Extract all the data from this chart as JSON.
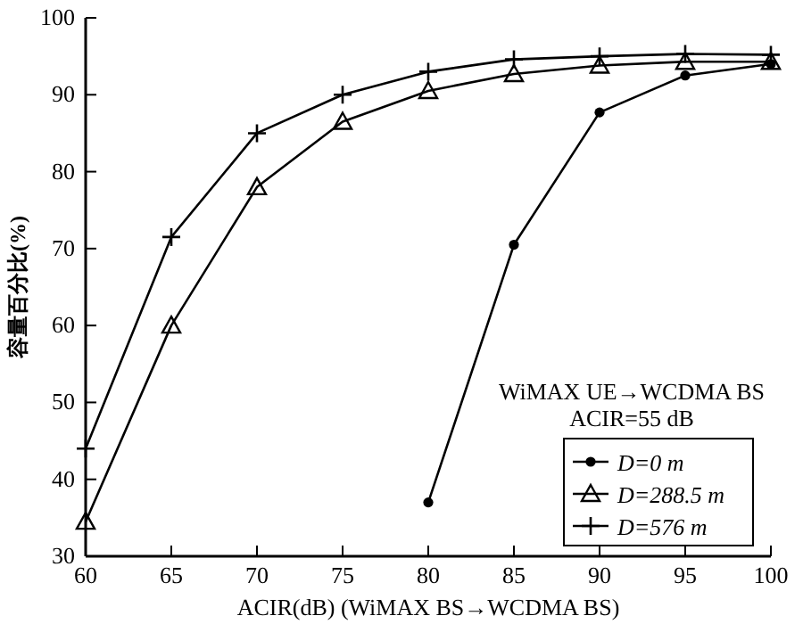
{
  "chart_data": {
    "type": "line",
    "ylabel": "容量百分比(%)",
    "xlabel": "ACIR(dB) (WiMAX BS→WCDMA BS)",
    "x": [
      60,
      65,
      70,
      75,
      80,
      85,
      90,
      95,
      100
    ],
    "xlim": [
      60,
      100
    ],
    "xticks": [
      60,
      65,
      70,
      75,
      80,
      85,
      90,
      95,
      100
    ],
    "ylim": [
      30,
      100
    ],
    "yticks": [
      30,
      40,
      50,
      60,
      70,
      80,
      90,
      100
    ],
    "grid": false,
    "legend": "bottom right",
    "legend_title": "WiMAX UE→WCDMA BS\nACIR=55 dB",
    "series": [
      {
        "name": "D=0 m",
        "color": "#000000",
        "marker": "circle",
        "values": [
          null,
          null,
          null,
          null,
          37,
          70.5,
          87.7,
          92.5,
          94
        ]
      },
      {
        "name": "D=288.5 m",
        "color": "#000000",
        "marker": "triangle",
        "values": [
          34.5,
          60,
          78,
          86.5,
          90.5,
          92.7,
          93.8,
          94.3,
          94.3
        ]
      },
      {
        "name": "D=576 m",
        "color": "#000000",
        "marker": "cross",
        "values": [
          44,
          71.5,
          85,
          90,
          93,
          94.6,
          95,
          95.3,
          95.2
        ]
      }
    ]
  }
}
